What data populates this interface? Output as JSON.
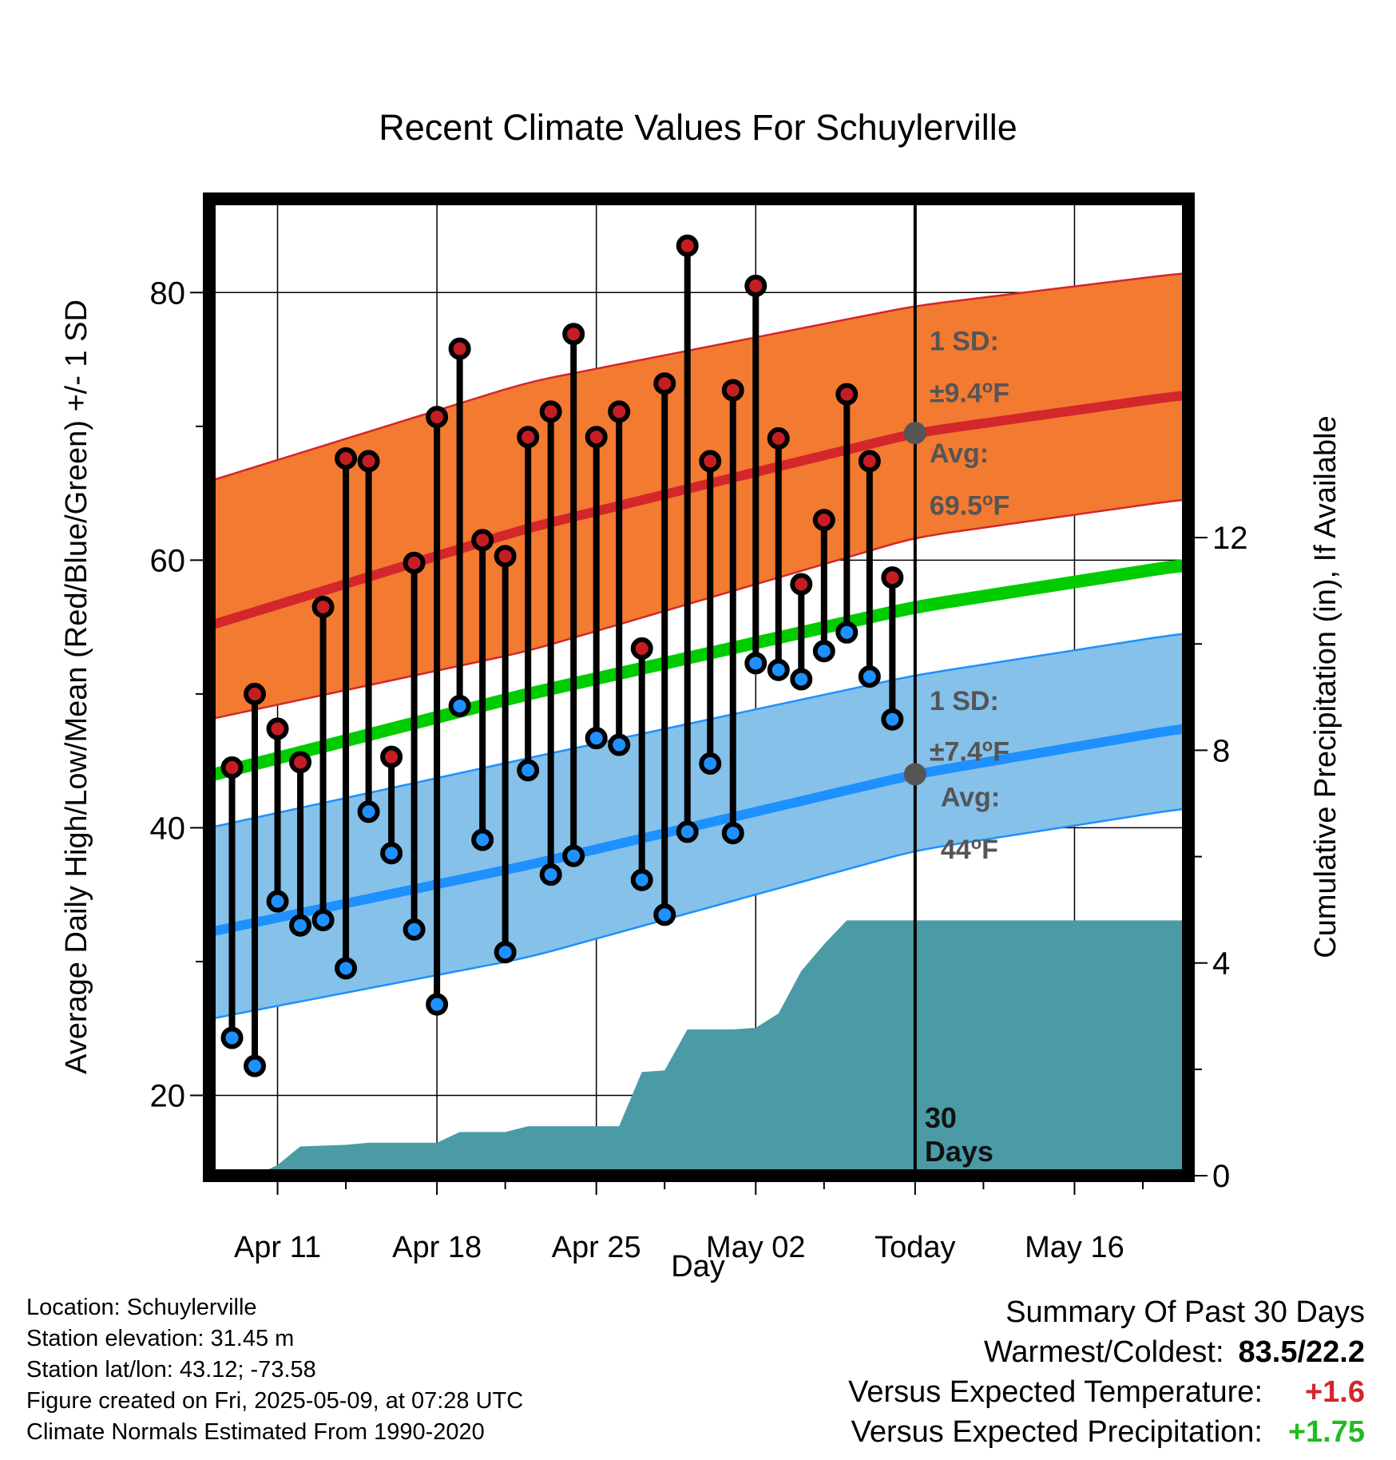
{
  "chart_data": {
    "type": "line",
    "title": "Recent Climate Values For Schuylerville",
    "xlabel": "Day",
    "ylabel": "Average Daily High/Low/Mean (Red/Blue/Green) +/- 1 SD",
    "y2label": "Cumulative Precipitation (in), If Available",
    "x_ticks": [
      "Apr 11",
      "Apr 18",
      "Apr 25",
      "May 02",
      "Today",
      "May 16"
    ],
    "x_range": [
      "2025-04-08",
      "2025-05-21"
    ],
    "ylim": [
      14,
      87
    ],
    "y_ticks": [
      20,
      40,
      60,
      80
    ],
    "y2lim": [
      0,
      18.37
    ],
    "y2_ticks": [
      0,
      4,
      8,
      12
    ],
    "grid": true,
    "today": "2025-05-09",
    "normals": {
      "x": [
        "2025-04-08",
        "2025-04-22",
        "2025-05-09",
        "2025-05-21"
      ],
      "high_mean": [
        55.1,
        62.4,
        69.5,
        72.4
      ],
      "high_upper": [
        65.9,
        73.3,
        79.0,
        81.5
      ],
      "high_lower": [
        48.1,
        53.2,
        61.7,
        64.6
      ],
      "mean": [
        43.9,
        50.0,
        56.5,
        59.7
      ],
      "low_mean": [
        32.2,
        37.2,
        44.0,
        47.5
      ],
      "low_upper": [
        40.0,
        45.2,
        51.4,
        54.6
      ],
      "low_lower": [
        25.7,
        30.3,
        38.3,
        41.5
      ]
    },
    "series": [
      {
        "name": "High",
        "x": [
          "2025-04-09",
          "2025-04-10",
          "2025-04-11",
          "2025-04-12",
          "2025-04-13",
          "2025-04-14",
          "2025-04-15",
          "2025-04-16",
          "2025-04-17",
          "2025-04-18",
          "2025-04-19",
          "2025-04-20",
          "2025-04-21",
          "2025-04-22",
          "2025-04-23",
          "2025-04-24",
          "2025-04-25",
          "2025-04-26",
          "2025-04-27",
          "2025-04-28",
          "2025-04-29",
          "2025-04-30",
          "2025-05-01",
          "2025-05-02",
          "2025-05-03",
          "2025-05-04",
          "2025-05-05",
          "2025-05-06",
          "2025-05-07",
          "2025-05-08"
        ],
        "values": [
          44.5,
          50.0,
          47.4,
          44.9,
          56.5,
          67.6,
          67.4,
          45.3,
          59.8,
          70.7,
          75.8,
          61.5,
          60.3,
          69.2,
          71.1,
          76.9,
          69.2,
          71.1,
          53.4,
          73.2,
          83.5,
          67.4,
          72.7,
          80.5,
          69.1,
          58.2,
          63.0,
          72.4,
          67.4,
          58.7
        ]
      },
      {
        "name": "Low",
        "x": [
          "2025-04-09",
          "2025-04-10",
          "2025-04-11",
          "2025-04-12",
          "2025-04-13",
          "2025-04-14",
          "2025-04-15",
          "2025-04-16",
          "2025-04-17",
          "2025-04-18",
          "2025-04-19",
          "2025-04-20",
          "2025-04-21",
          "2025-04-22",
          "2025-04-23",
          "2025-04-24",
          "2025-04-25",
          "2025-04-26",
          "2025-04-27",
          "2025-04-28",
          "2025-04-29",
          "2025-04-30",
          "2025-05-01",
          "2025-05-02",
          "2025-05-03",
          "2025-05-04",
          "2025-05-05",
          "2025-05-06",
          "2025-05-07",
          "2025-05-08"
        ],
        "values": [
          24.3,
          22.2,
          34.5,
          32.7,
          33.1,
          29.5,
          41.2,
          38.1,
          32.4,
          26.8,
          49.1,
          39.1,
          30.7,
          44.3,
          36.5,
          37.9,
          46.7,
          46.2,
          36.1,
          33.5,
          39.7,
          44.8,
          39.6,
          52.3,
          51.8,
          51.1,
          53.2,
          54.6,
          51.3,
          48.1
        ]
      },
      {
        "name": "Cumulative Precipitation",
        "x": [
          "2025-04-08",
          "2025-04-10",
          "2025-04-11",
          "2025-04-12",
          "2025-04-14",
          "2025-04-15",
          "2025-04-18",
          "2025-04-19",
          "2025-04-21",
          "2025-04-22",
          "2025-04-26",
          "2025-04-27",
          "2025-04-28",
          "2025-04-29",
          "2025-04-30",
          "2025-05-01",
          "2025-05-02",
          "2025-05-03",
          "2025-05-04",
          "2025-05-05",
          "2025-05-06",
          "2025-05-21"
        ],
        "values": [
          0.0,
          0.0,
          0.2,
          0.55,
          0.58,
          0.62,
          0.62,
          0.82,
          0.82,
          0.93,
          0.93,
          1.95,
          1.98,
          2.75,
          2.75,
          2.75,
          2.78,
          3.05,
          3.85,
          4.35,
          4.8,
          4.8
        ]
      }
    ],
    "annotations": {
      "high_sd_line1": "1 SD:",
      "high_sd_line2": "±9.4",
      "high_avg_line1": "Avg:",
      "high_avg_line2": "69.5",
      "low_sd_line1": "1 SD:",
      "low_sd_line2": "±7.4",
      "low_avg_line1": "Avg:",
      "low_avg_line2": "44",
      "unit_degree": "o",
      "unit_f": "F",
      "days_line1": "30",
      "days_line2": "Days"
    },
    "colors": {
      "high_band": "#f37a31",
      "high_line": "#d3272b",
      "low_band": "#85c1e9",
      "low_line": "#1e90ff",
      "mean_line": "#00cc00",
      "precip": "#4a9ba6",
      "high_marker": "#c41e24",
      "low_marker": "#1e90ff",
      "annotation": "#555555"
    }
  },
  "footer": {
    "location": "Location: Schuylerville",
    "elevation": "Station elevation: 31.45 m",
    "latlon": "Station lat/lon: 43.12; -73.58",
    "created": "Figure created on Fri, 2025-05-09, at 07:28 UTC",
    "normals": "Climate Normals Estimated From 1990-2020"
  },
  "summary": {
    "title": "Summary Of Past 30 Days",
    "warm_cold_label": "Warmest/Coldest:",
    "warm_cold_value": "83.5/22.2",
    "temp_label": "Versus Expected Temperature:",
    "temp_value": "+1.6",
    "precip_label": "Versus Expected Precipitation:",
    "precip_value": "+1.75",
    "temp_color": "#d3272b",
    "precip_color": "#22bb22"
  }
}
